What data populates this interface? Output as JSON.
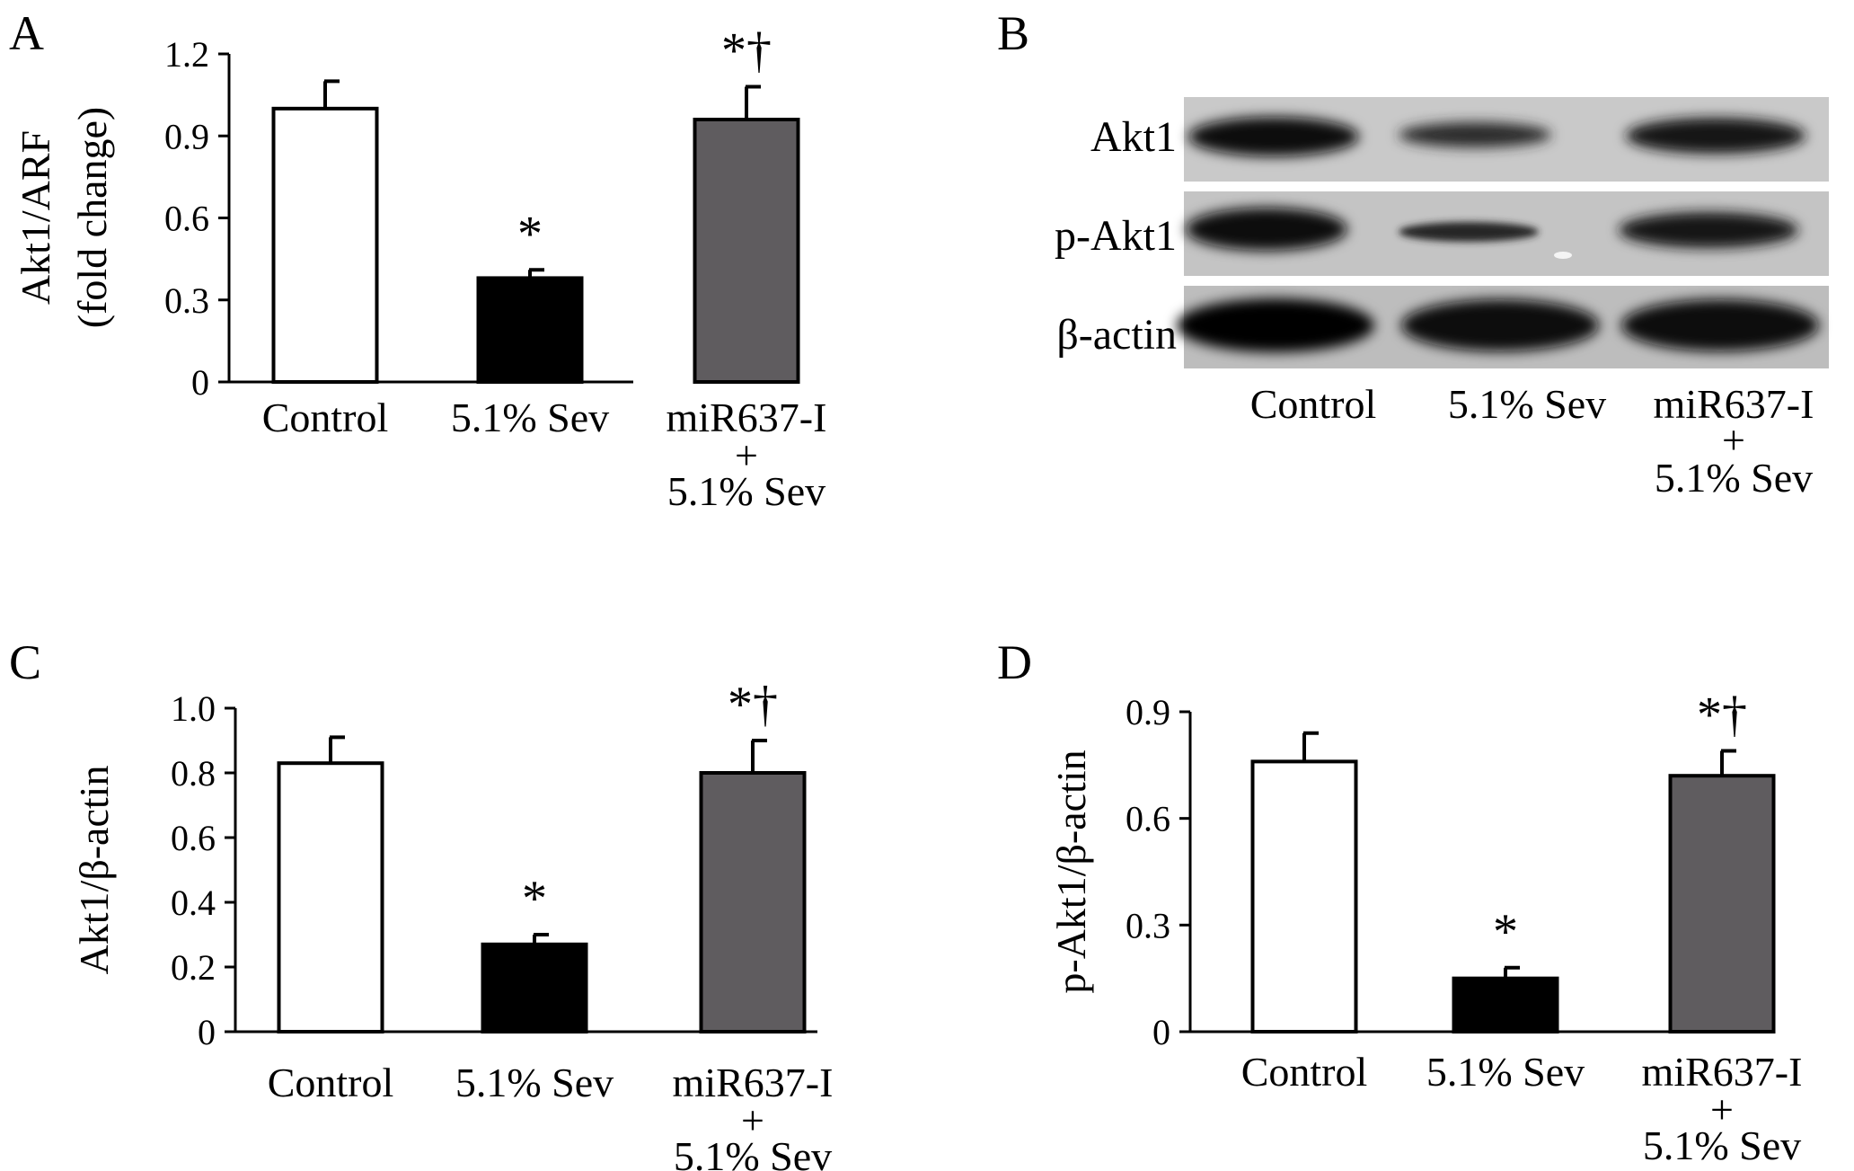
{
  "colors": {
    "control": "#ffffff",
    "sev": "#000000",
    "mir": "#5f5c5f",
    "axis": "#000000",
    "blot_bg": "#c9c9c9"
  },
  "chart_data": [
    {
      "panel": "A",
      "type": "bar",
      "ylabel": [
        "Akt1/ARF",
        "(fold change)"
      ],
      "ylim": [
        0,
        1.2
      ],
      "yticks": [
        "0",
        "0.3",
        "0.6",
        "0.9",
        "1.2"
      ],
      "categories": [
        {
          "lines": [
            "Control"
          ]
        },
        {
          "lines": [
            "5.1% Sev"
          ]
        },
        {
          "lines": [
            "miR637-I",
            "+",
            "5.1% Sev"
          ]
        }
      ],
      "values": [
        1.0,
        0.38,
        0.96
      ],
      "errors": [
        0.1,
        0.03,
        0.12
      ],
      "significance": [
        "",
        "*",
        "*†"
      ]
    },
    {
      "panel": "C",
      "type": "bar",
      "ylabel": [
        "Akt1/β-actin"
      ],
      "ylim": [
        0,
        1.0
      ],
      "yticks": [
        "0",
        "0.2",
        "0.4",
        "0.6",
        "0.8",
        "1.0"
      ],
      "categories": [
        {
          "lines": [
            "Control"
          ]
        },
        {
          "lines": [
            "5.1% Sev"
          ]
        },
        {
          "lines": [
            "miR637-I",
            "+",
            "5.1% Sev"
          ]
        }
      ],
      "values": [
        0.83,
        0.27,
        0.8
      ],
      "errors": [
        0.08,
        0.03,
        0.1
      ],
      "significance": [
        "",
        "*",
        "*†"
      ]
    },
    {
      "panel": "D",
      "type": "bar",
      "ylabel": [
        "p-Akt1/β-actin"
      ],
      "ylim": [
        0,
        0.9
      ],
      "yticks": [
        "0",
        "0.3",
        "0.6",
        "0.9"
      ],
      "categories": [
        {
          "lines": [
            "Control"
          ]
        },
        {
          "lines": [
            "5.1% Sev"
          ]
        },
        {
          "lines": [
            "miR637-I",
            "+",
            "5.1% Sev"
          ]
        }
      ],
      "values": [
        0.76,
        0.15,
        0.72
      ],
      "errors": [
        0.08,
        0.03,
        0.07
      ],
      "significance": [
        "",
        "*",
        "*†"
      ]
    }
  ],
  "blot": {
    "panel": "B",
    "rows": [
      "Akt1",
      "p-Akt1",
      "β-actin"
    ],
    "lanes": [
      {
        "lines": [
          "Control"
        ]
      },
      {
        "lines": [
          "5.1% Sev"
        ]
      },
      {
        "lines": [
          "miR637-I",
          "+",
          "5.1% Sev"
        ]
      }
    ]
  }
}
